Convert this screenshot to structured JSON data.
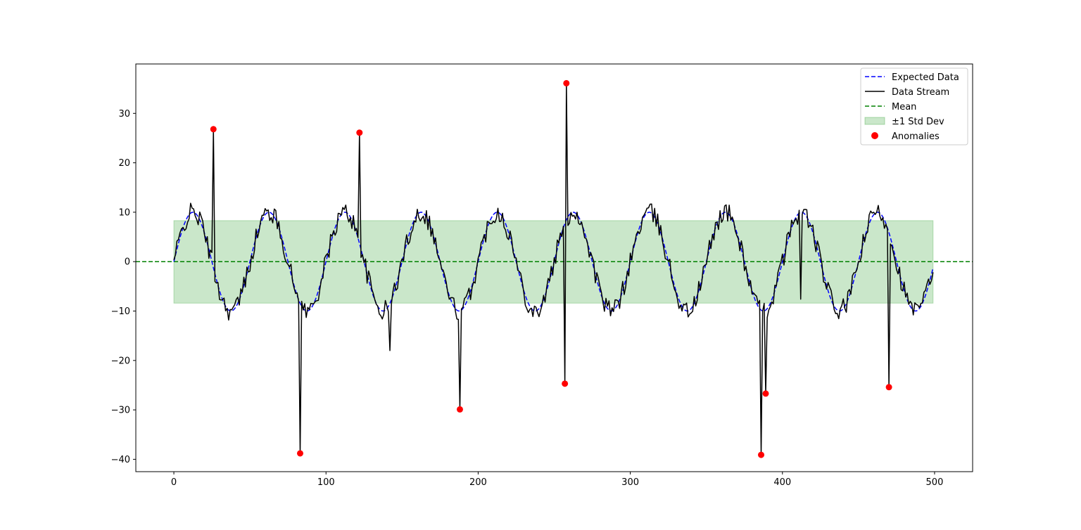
{
  "chart_data": {
    "type": "line",
    "title": "",
    "xlabel": "",
    "ylabel": "",
    "xlim": [
      -25,
      525
    ],
    "ylim": [
      -42.5,
      40
    ],
    "xticks": [
      0,
      100,
      200,
      300,
      400,
      500
    ],
    "yticks": [
      -40,
      -30,
      -20,
      -10,
      0,
      10,
      20,
      30
    ],
    "grid": false,
    "legend_position": "top-right",
    "n_points": 500,
    "expected": {
      "name": "Expected Data",
      "color": "#0000ff",
      "style": "dashed",
      "amplitude": 10,
      "period": 50,
      "phase": 0
    },
    "stream": {
      "name": "Data Stream",
      "color": "#000000",
      "noise_amplitude": 2
    },
    "mean": {
      "name": "Mean",
      "value": 0,
      "color": "#008000",
      "style": "dashed"
    },
    "std_band": {
      "name": "±1 Std Dev",
      "x_range": [
        0,
        499
      ],
      "lower": -8.4,
      "upper": 8.3,
      "color": "#2ca02c",
      "opacity": 0.25
    },
    "anomalies": {
      "name": "Anomalies",
      "color": "#ff0000",
      "points": [
        {
          "x": 26,
          "y": 26.8
        },
        {
          "x": 83,
          "y": -38.8
        },
        {
          "x": 122,
          "y": 26.1
        },
        {
          "x": 188,
          "y": -29.9
        },
        {
          "x": 257,
          "y": -24.7
        },
        {
          "x": 258,
          "y": 36.1
        },
        {
          "x": 386,
          "y": -39.1
        },
        {
          "x": 389,
          "y": -26.7
        },
        {
          "x": 470,
          "y": -25.4
        }
      ]
    },
    "extra_spikes": [
      {
        "x": 142,
        "y": -18.0
      },
      {
        "x": 412,
        "y": -7.6
      }
    ],
    "legend": [
      "Expected Data",
      "Data Stream",
      "Mean",
      "±1 Std Dev",
      "Anomalies"
    ]
  }
}
